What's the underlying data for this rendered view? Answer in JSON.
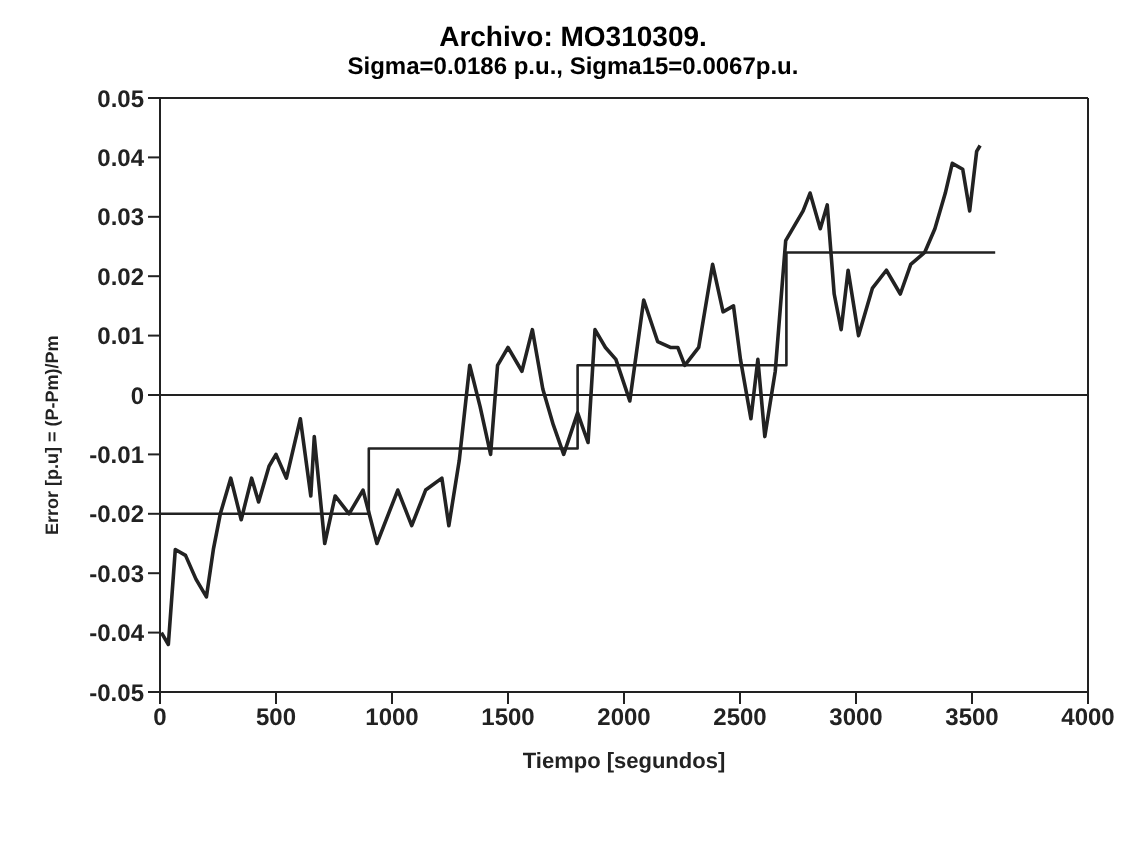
{
  "chart_data": {
    "type": "line",
    "title": "Archivo: MO310309.",
    "subtitle": "Sigma=0.0186 p.u., Sigma15=0.0067p.u.",
    "xlabel": "Tiempo [segundos]",
    "ylabel": "Error [p.u] = (P-Pm)/Pm",
    "xlim": [
      0,
      4000
    ],
    "xticks": [
      0,
      500,
      1000,
      1500,
      2000,
      2500,
      3000,
      3500,
      4000
    ],
    "ylim": [
      -0.05,
      0.05
    ],
    "yticks": [
      -0.05,
      -0.04,
      -0.03,
      -0.02,
      -0.01,
      0,
      0.01,
      0.02,
      0.03,
      0.04,
      0.05
    ],
    "legend": false,
    "marker": "none",
    "line_style": "solid",
    "ref_lines": [
      {
        "axis": "y",
        "value": 0,
        "color": "#222222"
      }
    ],
    "series": [
      {
        "color": "#222222",
        "x": [
          6,
          36,
          66,
          110,
          155,
          200,
          230,
          260,
          305,
          350,
          395,
          425,
          470,
          500,
          545,
          605,
          650,
          665,
          710,
          755,
          815,
          875,
          935,
          1025,
          1085,
          1145,
          1215,
          1245,
          1290,
          1335,
          1380,
          1425,
          1455,
          1500,
          1560,
          1605,
          1650,
          1695,
          1740,
          1800,
          1845,
          1875,
          1920,
          1965,
          2025,
          2085,
          2145,
          2200,
          2232,
          2262,
          2322,
          2382,
          2427,
          2472,
          2502,
          2547,
          2577,
          2607,
          2652,
          2697,
          2772,
          2802,
          2846,
          2876,
          2906,
          2936,
          2966,
          3011,
          3071,
          3131,
          3191,
          3236,
          3296,
          3340,
          3385,
          3415,
          3460,
          3490,
          3520,
          3535
        ],
        "values": [
          -0.04,
          -0.042,
          -0.026,
          -0.027,
          -0.031,
          -0.034,
          -0.026,
          -0.02,
          -0.014,
          -0.021,
          -0.014,
          -0.018,
          -0.012,
          -0.01,
          -0.014,
          -0.004,
          -0.017,
          -0.007,
          -0.025,
          -0.017,
          -0.02,
          -0.016,
          -0.025,
          -0.016,
          -0.022,
          -0.016,
          -0.014,
          -0.022,
          -0.011,
          0.005,
          -0.002,
          -0.01,
          0.005,
          0.008,
          0.004,
          0.011,
          0.001,
          -0.005,
          -0.01,
          -0.003,
          -0.008,
          0.011,
          0.008,
          0.006,
          -0.001,
          0.016,
          0.009,
          0.008,
          0.008,
          0.005,
          0.008,
          0.022,
          0.014,
          0.015,
          0.006,
          -0.004,
          0.006,
          -0.007,
          0.004,
          0.026,
          0.031,
          0.034,
          0.028,
          0.032,
          0.017,
          0.011,
          0.021,
          0.01,
          0.018,
          0.021,
          0.017,
          0.022,
          0.024,
          0.028,
          0.034,
          0.039,
          0.038,
          0.031,
          0.041,
          0.042
        ]
      },
      {
        "type": "step",
        "color": "#222222",
        "x": [
          0,
          900,
          1800,
          2700,
          3600
        ],
        "values": [
          -0.02,
          -0.009,
          0.005,
          0.024,
          0.024
        ]
      }
    ]
  }
}
